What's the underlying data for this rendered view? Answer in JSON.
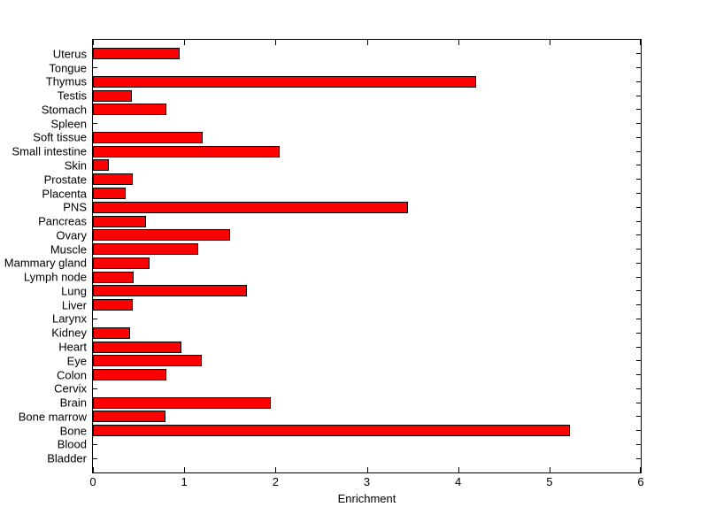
{
  "figure": {
    "background_color": "#ffffff",
    "bar_color": "#ff0000",
    "bar_edge_color": "#000000",
    "axis_color": "#000000",
    "text_color": "#000000"
  },
  "chart_data": {
    "type": "bar",
    "orientation": "horizontal",
    "title": "",
    "xlabel": "Enrichment",
    "ylabel": "",
    "xlim": [
      0,
      6
    ],
    "x_ticks": [
      0,
      1,
      2,
      3,
      4,
      5,
      6
    ],
    "grid": false,
    "legend": null,
    "categories": [
      "Uterus",
      "Tongue",
      "Thymus",
      "Testis",
      "Stomach",
      "Spleen",
      "Soft tissue",
      "Small intestine",
      "Skin",
      "Prostate",
      "Placenta",
      "PNS",
      "Pancreas",
      "Ovary",
      "Muscle",
      "Mammary gland",
      "Lymph node",
      "Lung",
      "Liver",
      "Larynx",
      "Kidney",
      "Heart",
      "Eye",
      "Colon",
      "Cervix",
      "Brain",
      "Bone marrow",
      "Bone",
      "Blood",
      "Bladder"
    ],
    "values": [
      0.95,
      0,
      4.2,
      0.43,
      0.8,
      0,
      1.2,
      2.05,
      0.17,
      0.44,
      0.36,
      3.45,
      0.58,
      1.5,
      1.15,
      0.62,
      0.45,
      1.69,
      0.44,
      0,
      0.41,
      0.97,
      1.19,
      0.8,
      0,
      1.95,
      0.79,
      5.22,
      0,
      0
    ]
  }
}
